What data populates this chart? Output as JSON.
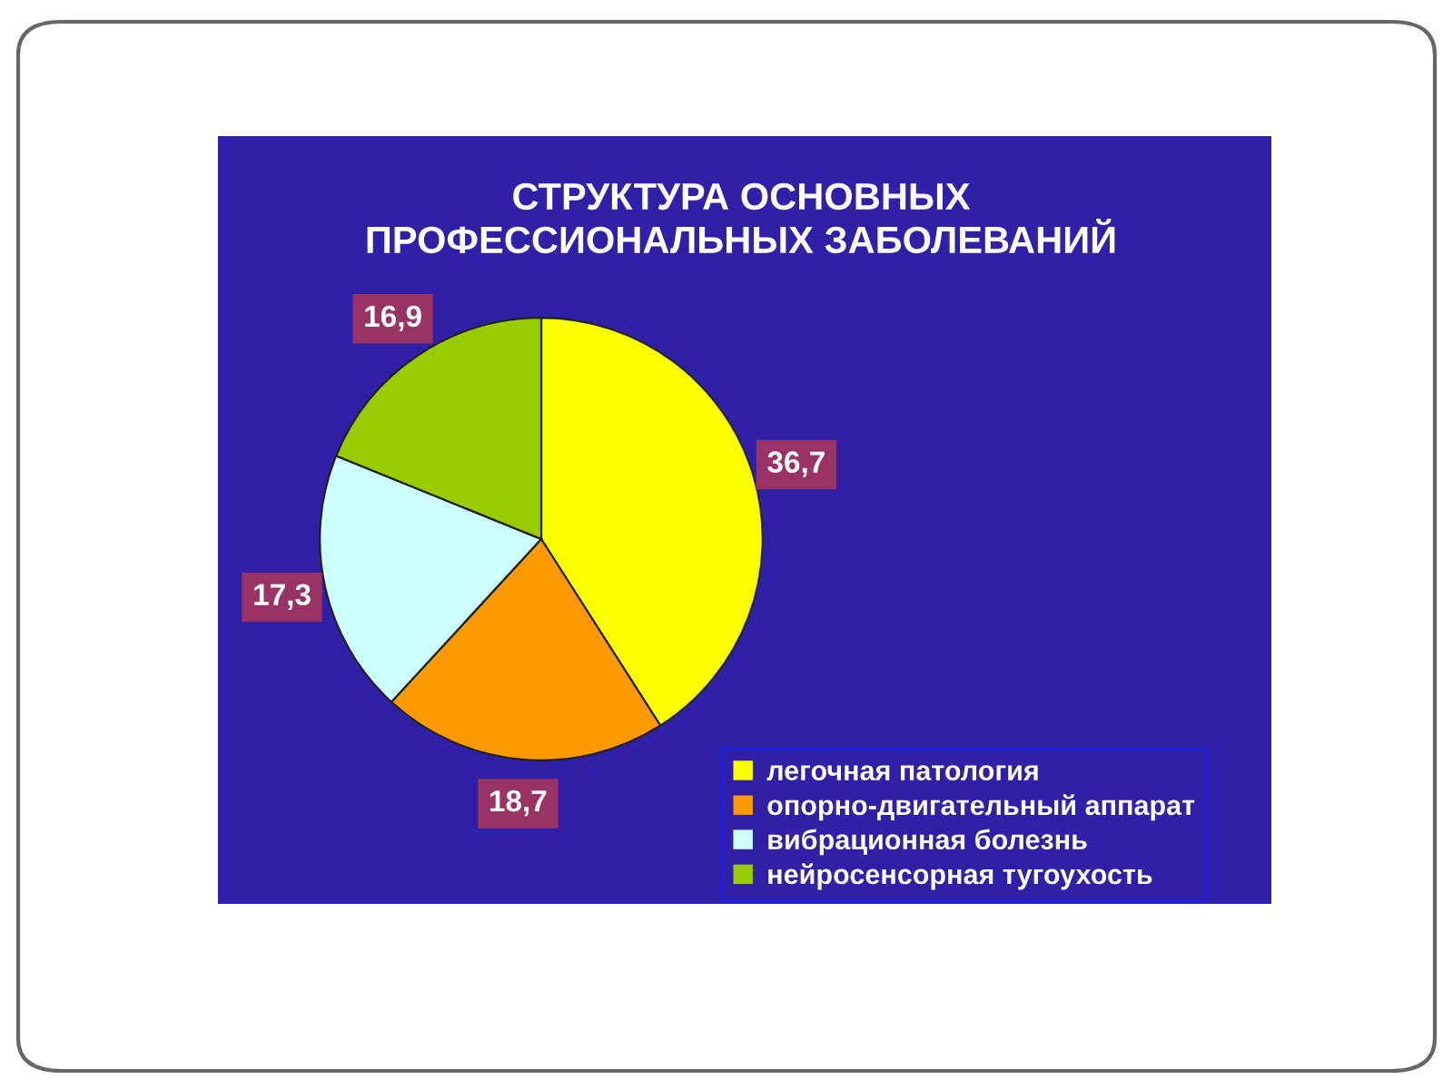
{
  "chart_data": {
    "type": "pie",
    "title": "СТРУКТУРА ОСНОВНЫХ\nПРОФЕССИОНАЛЬНЫХ ЗАБОЛЕВАНИЙ",
    "categories": [
      "легочная патология",
      "опорно-двигательный аппарат",
      "вибрационная болезнь",
      "нейросенсорная тугоухость"
    ],
    "values": [
      36.7,
      18.7,
      17.3,
      16.9
    ],
    "colors": [
      "#ffff00",
      "#ff9900",
      "#ccffff",
      "#99cc00"
    ],
    "value_labels": [
      "36,7",
      "18,7",
      "17,3",
      "16,9"
    ],
    "legend": "bottom right"
  }
}
